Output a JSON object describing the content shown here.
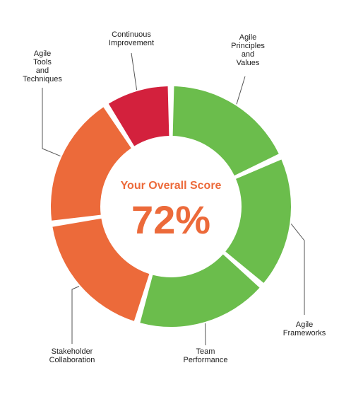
{
  "center": {
    "title": "Your Overall Score",
    "score": "72%",
    "accent_color": "#ec6a3a"
  },
  "colors": {
    "green": "#6bbd4c",
    "orange": "#ec6a3a",
    "red": "#d3213d",
    "leader": "#555555"
  },
  "chart_data": {
    "type": "pie",
    "style": "donut",
    "title": "Your Overall Score",
    "total_score": 72,
    "segments": [
      {
        "label": "Agile Principles and Values",
        "lines": [
          "Agile",
          "Principles",
          "and",
          "Values"
        ],
        "value": 1,
        "status": "green"
      },
      {
        "label": "Agile Frameworks",
        "lines": [
          "Agile",
          "Frameworks"
        ],
        "value": 1,
        "status": "green"
      },
      {
        "label": "Team Performance",
        "lines": [
          "Team",
          "Performance"
        ],
        "value": 1,
        "status": "green"
      },
      {
        "label": "Stakeholder Collaboration",
        "lines": [
          "Stakeholder",
          "Collaboration"
        ],
        "value": 1,
        "status": "orange"
      },
      {
        "label": "Agile Tools and Techniques",
        "lines": [
          "Agile",
          "Tools",
          "and",
          "Techniques"
        ],
        "value": 1,
        "status": "orange"
      },
      {
        "label": "Continuous Improvement",
        "lines": [
          "Continuous",
          "Improvement"
        ],
        "value": 0.5,
        "status": "red"
      }
    ]
  }
}
